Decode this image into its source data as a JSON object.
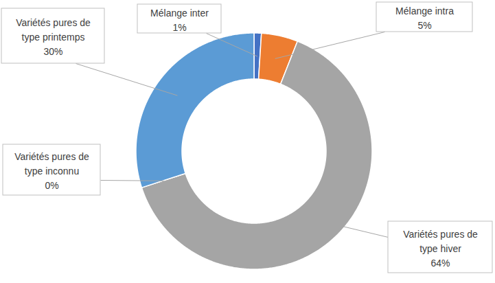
{
  "chart_data": {
    "type": "donut",
    "categories": [
      "Mélange inter",
      "Mélange intra",
      "Variétés pures de type hiver",
      "Variétés pures de type inconnu",
      "Variétés pures de type printemps"
    ],
    "values": [
      1,
      5,
      64,
      0,
      30
    ],
    "value_labels": [
      "1%",
      "5%",
      "64%",
      "0%",
      "30%"
    ],
    "colors": [
      "#4472c4",
      "#ed7d31",
      "#a5a5a5",
      "#ffc000",
      "#5b9bd5"
    ],
    "data_labels": true
  }
}
